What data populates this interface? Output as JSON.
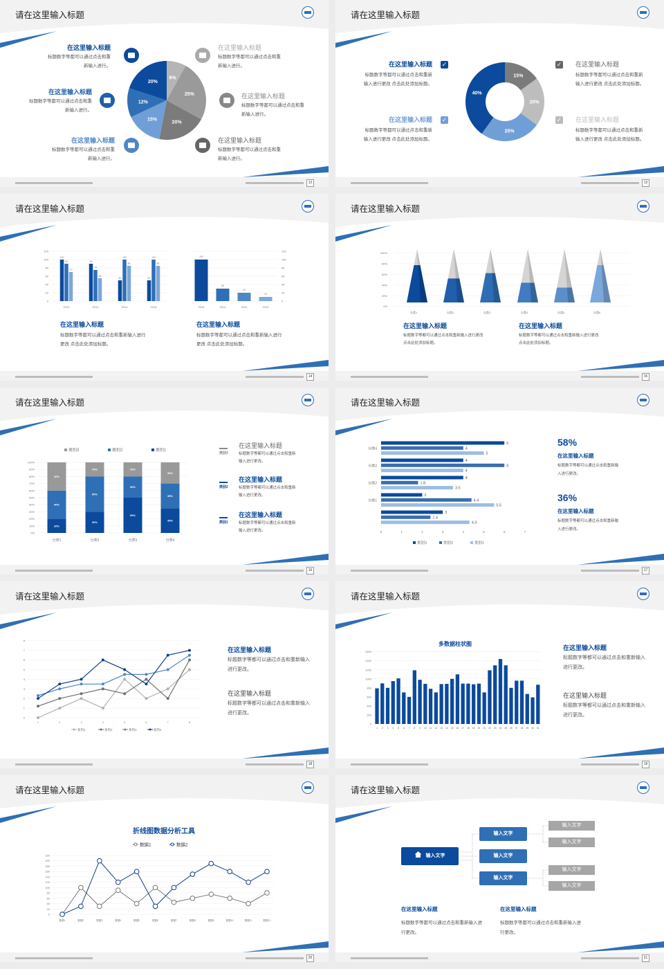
{
  "slides": [
    {
      "page": "12",
      "title": "请在这里输入标题",
      "items": [
        {
          "title": "在这里输入标题",
          "text": "标题数字等都可以通过点击和重新输入进行。",
          "icon": "monitor-icon"
        },
        {
          "title": "在这里输入标题",
          "text": "标题数字等都可以通过点击和重新输入进行。",
          "icon": "car-icon"
        },
        {
          "title": "在这里输入标题",
          "text": "标题数字等都可以通过点击和重新输入进行。",
          "icon": "book-icon"
        },
        {
          "title": "在这里输入标题",
          "text": "标题数字等都可以通过点击和重新输入进行。",
          "icon": "phone-icon"
        },
        {
          "title": "在这里输入标题",
          "text": "标题数字等都可以通过点击和重新输入进行。",
          "icon": "binoculars-icon"
        },
        {
          "title": "在这里输入标题",
          "text": "标题数字等都可以通过点击和重新输入进行。",
          "icon": "bicycle-icon"
        }
      ]
    },
    {
      "page": "13",
      "title": "请在这里输入标题",
      "items": [
        {
          "title": "在这里输入标题",
          "text": "标题数字等都可以通过点击和重新输入进行更改 点击此处添加标题。",
          "icon": "checkbox-icon"
        },
        {
          "title": "在这里输入标题",
          "text": "标题数字等都可以通过点击和重新输入进行更改 点击此处添加标题。",
          "icon": "checkbox-icon"
        },
        {
          "title": "在这里输入标题",
          "text": "标题数字等都可以通过点击和重新输入进行更改 点击此处添加标题。",
          "icon": "checkbox-icon"
        },
        {
          "title": "在这里输入标题",
          "text": "标题数字等都可以通过点击和重新输入进行更改 点击此处添加标题。",
          "icon": "checkbox-icon"
        }
      ]
    },
    {
      "page": "14",
      "title": "请在这里输入标题",
      "items": [
        {
          "title": "在这里输入标题",
          "text": "标题数字等都可以通过点击和重新输入进行更改 点击此处添加标题。"
        },
        {
          "title": "在这里输入标题",
          "text": "标题数字等都可以通过点击和重新输入进行更改 点击此处添加标题。"
        }
      ]
    },
    {
      "page": "15",
      "title": "请在这里输入标题",
      "items": [
        {
          "title": "在这里输入标题",
          "text": "标题数字等都可以通过点击和重新输入进行更改 点击此处添加标题。"
        },
        {
          "title": "在这里输入标题",
          "text": "标题数字等都可以通过点击和重新输入进行更改 点击此处添加标题。"
        }
      ]
    },
    {
      "page": "16",
      "title": "请在这里输入标题",
      "items": [
        {
          "title": "在这里输入标题",
          "text": "标题数字等都可以通过点击和重新输入进行更改。",
          "icon_label": "类别3",
          "icon": "bar-chart-icon"
        },
        {
          "title": "在这里输入标题",
          "text": "标题数字等都可以通过点击和重新输入进行更改。",
          "icon_label": "类别2",
          "icon": "upload-icon"
        },
        {
          "title": "在这里输入标题",
          "text": "标题数字等都可以通过点击和重新输入进行更改。",
          "icon_label": "类别1",
          "icon": "download-icon"
        }
      ]
    },
    {
      "page": "17",
      "title": "请在这里输入标题",
      "items": [
        {
          "stat": "58%",
          "title": "在这里输入标题",
          "text": "标题数字等都可以通过点击和重新输入进行更改。"
        },
        {
          "stat": "36%",
          "title": "在这里输入标题",
          "text": "标题数字等都可以通过点击和重新输入进行更改。"
        }
      ]
    },
    {
      "page": "18",
      "title": "请在这里输入标题",
      "items": [
        {
          "title": "在这里输入标题",
          "text": "标题数字等都可以通过点击和重新输入进行更改。"
        },
        {
          "title": "在这里输入标题",
          "text": "标题数字等都可以通过点击和重新输入进行更改。"
        }
      ]
    },
    {
      "page": "19",
      "title": "请在这里输入标题",
      "items": [
        {
          "title": "在这里输入标题",
          "text": "标题数字等都可以通过点击和重新输入进行更改。"
        },
        {
          "title": "在这里输入标题",
          "text": "标题数字等都可以通过点击和重新输入进行更改。"
        }
      ]
    },
    {
      "page": "20",
      "title": "请在这里输入标题",
      "items": []
    },
    {
      "page": "21",
      "title": "请在这里输入标题",
      "diagram": {
        "root": "输入文字",
        "middle": [
          "输入文字",
          "输入文字",
          "输入文字"
        ],
        "leaves": [
          "输入文字",
          "输入文字",
          "输入文字",
          "输入文字"
        ],
        "root_icon": "home-icon"
      },
      "items": [
        {
          "title": "在这里输入标题",
          "text": "标题数字等都可以通过点击和重新输入进行更改。"
        },
        {
          "title": "在这里输入标题",
          "text": "标题数字等都可以通过点击和重新输入进行更改。"
        }
      ]
    }
  ],
  "colors": {
    "navy": "#0b4a9c",
    "blue": "#2f6fb5",
    "light_blue": "#6f9fd6",
    "gray": "#999999"
  },
  "chart_data": [
    {
      "type": "pie",
      "values": [
        8,
        25,
        20,
        15,
        12,
        20
      ],
      "colors": [
        "#b5b5b5",
        "#9a9a9a",
        "#7b7b7b",
        "#6f9fd6",
        "#2f6fb5",
        "#0b4a9c"
      ]
    },
    {
      "type": "pie",
      "donut": true,
      "values": [
        15,
        20,
        25,
        40
      ],
      "colors": [
        "#7b7b7b",
        "#bdbdbd",
        "#6f9fd6",
        "#0b4a9c"
      ]
    },
    {
      "type": "bar",
      "categories": [
        "2010",
        "2012",
        "2014",
        "2016"
      ],
      "series": [
        {
          "values": [
            100,
            90,
            50,
            50
          ]
        },
        {
          "values": [
            90,
            75,
            100,
            100
          ]
        },
        {
          "values": [
            70,
            55,
            85,
            85
          ]
        }
      ],
      "ylim": [
        0,
        120
      ],
      "ystep": 20,
      "colors": [
        "#0b4a9c",
        "#2f6fb5",
        "#7ba7db"
      ]
    },
    {
      "type": "bar",
      "categories": [
        "2016",
        "2014",
        "2012",
        "2010"
      ],
      "values": [
        100,
        30,
        20,
        10
      ],
      "ylim": [
        0,
        120
      ],
      "ystep": 20,
      "yaxis": "right",
      "colors": [
        "#0b4a9c",
        "#2f6fb5",
        "#4f86c6",
        "#7ba7db"
      ]
    },
    {
      "type": "bar",
      "style": "pyramid-3d",
      "categories": [
        "分类1",
        "分类2",
        "分类3",
        "分类4",
        "分类5",
        "分类6"
      ],
      "values": [
        70,
        45,
        55,
        37,
        28,
        70
      ],
      "ylim": [
        0,
        100
      ],
      "ystep": 20,
      "unit": "%",
      "colors": [
        "#0b4a9c",
        "#1f5fae",
        "#2e6db4",
        "#3f7cc0",
        "#5a8fcc",
        "#7ba7db"
      ]
    },
    {
      "type": "bar",
      "stacked": "percent",
      "categories": [
        "分类1",
        "分类2",
        "分类3",
        "分类4"
      ],
      "series": [
        {
          "name": "类别1",
          "values": [
            20,
            30,
            50,
            35
          ],
          "color": "#0b4a9c"
        },
        {
          "name": "类别2",
          "values": [
            40,
            50,
            30,
            35
          ],
          "color": "#2f6fb5"
        },
        {
          "name": "类别3",
          "values": [
            40,
            20,
            20,
            30
          ],
          "color": "#999999"
        }
      ],
      "ylim": [
        0,
        100
      ],
      "ystep": 10,
      "legend": "top"
    },
    {
      "type": "bar",
      "orientation": "horizontal",
      "categories": [
        "分类4",
        "分类3",
        "分类2",
        "分类1",
        ""
      ],
      "series": [
        {
          "name": "类别3",
          "values": [
            6,
            4,
            4,
            2,
            3
          ],
          "color": "#0b4a9c"
        },
        {
          "name": "类别2",
          "values": [
            4,
            6,
            1.8,
            4.4,
            2.4
          ],
          "color": "#3a6eac"
        },
        {
          "name": "类别1",
          "values": [
            5,
            4,
            3.5,
            5.5,
            4.3
          ],
          "color": "#9dbde3"
        }
      ],
      "xlim": [
        0,
        7
      ],
      "xstep": 1,
      "legend": "bottom"
    },
    {
      "type": "line",
      "x": [
        1,
        2,
        3,
        4,
        5,
        6,
        7,
        8
      ],
      "series": [
        {
          "name": "系列1",
          "values": [
            0,
            1,
            2,
            1,
            4,
            2,
            3,
            5
          ],
          "color": "#b0b0b0"
        },
        {
          "name": "系列2",
          "values": [
            1.2,
            2,
            2.5,
            3,
            2.5,
            4,
            2,
            6
          ],
          "color": "#6f6f6f"
        },
        {
          "name": "系列3",
          "values": [
            2.3,
            3,
            3.5,
            3.5,
            4.5,
            4.5,
            5,
            6.5
          ],
          "color": "#4f86c6"
        },
        {
          "name": "系列4",
          "values": [
            2,
            3.5,
            4,
            6,
            5,
            3.5,
            6.5,
            7
          ],
          "color": "#0e3f8a"
        }
      ],
      "ylim": [
        0,
        8
      ],
      "ystep": 1,
      "legend": "bottom"
    },
    {
      "type": "bar",
      "title": "多数据柱状图",
      "categories": [
        "1",
        "2",
        "3",
        "4",
        "5",
        "6",
        "7",
        "8",
        "9",
        "10",
        "11",
        "12",
        "13",
        "14",
        "15",
        "16",
        "17",
        "18",
        "19",
        "20",
        "21",
        "22",
        "23",
        "24",
        "25",
        "26",
        "27",
        "28",
        "29",
        "30",
        "31"
      ],
      "values": [
        790,
        900,
        800,
        950,
        1010,
        700,
        600,
        1190,
        980,
        890,
        780,
        700,
        885,
        890,
        1000,
        1100,
        895,
        895,
        880,
        895,
        700,
        1190,
        1300,
        1440,
        1300,
        800,
        960,
        960,
        665,
        590,
        870
      ],
      "ylim": [
        0,
        1600
      ],
      "ystep": 200,
      "color": "#0b4a9c"
    },
    {
      "type": "line",
      "title": "折线图数据分析工具",
      "categories": [
        "数据1",
        "数据2",
        "数据3",
        "数据4",
        "数据5",
        "数据6",
        "数据7",
        "数据8",
        "数据9",
        "数据10",
        "数据11",
        "数据12"
      ],
      "series": [
        {
          "name": "数据1",
          "values": [
            0,
            100,
            30,
            90,
            40,
            100,
            45,
            60,
            75,
            60,
            40,
            80
          ],
          "color": "#777777"
        },
        {
          "name": "数据2",
          "values": [
            0,
            30,
            200,
            120,
            160,
            30,
            100,
            150,
            190,
            160,
            120,
            160
          ],
          "color": "#0e3f8a"
        }
      ],
      "ylim": [
        0,
        220
      ],
      "ystep": 20,
      "legend": "top",
      "markers": "hollow-circle"
    }
  ]
}
